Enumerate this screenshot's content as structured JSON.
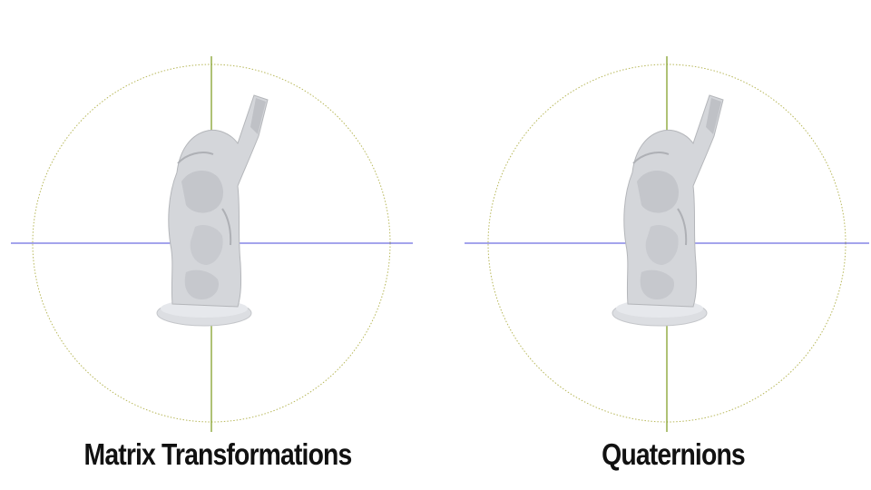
{
  "panels": [
    {
      "label": "Matrix Transformations"
    },
    {
      "label": "Quaternions"
    }
  ],
  "colors": {
    "background": "#ffffff",
    "circle": "#b8b85a",
    "horizontal_axis": "#4a4ad8",
    "vertical_axis": "#7a9a1a",
    "model": "#d4d6da",
    "text": "#111111"
  },
  "icons": [
    "3d-statue-model",
    "rotation-circle-guide"
  ]
}
